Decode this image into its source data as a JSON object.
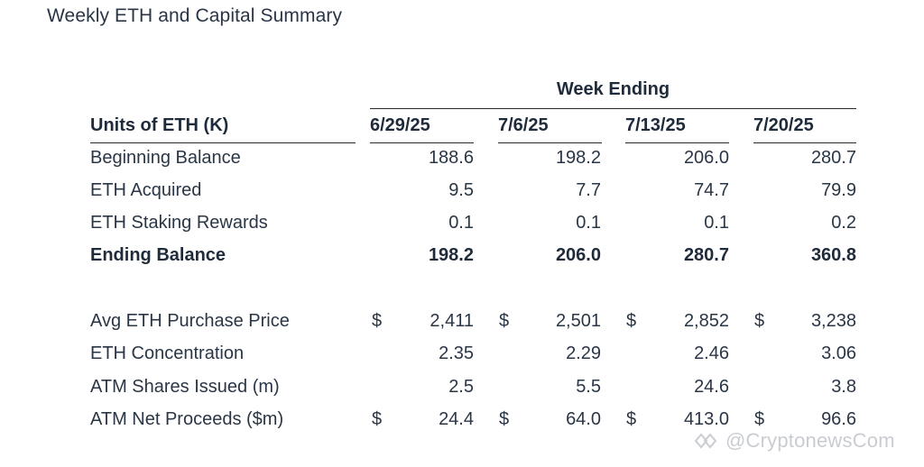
{
  "title": "Weekly ETH and Capital Summary",
  "header": {
    "group_label": "Week Ending",
    "units_label": "Units of ETH (K)",
    "dates": [
      "6/29/25",
      "7/6/25",
      "7/13/25",
      "7/20/25"
    ]
  },
  "rows": [
    {
      "label": "Beginning Balance",
      "bold": false,
      "currency": false,
      "values": [
        "188.6",
        "198.2",
        "206.0",
        "280.7"
      ]
    },
    {
      "label": "ETH Acquired",
      "bold": false,
      "currency": false,
      "values": [
        "9.5",
        "7.7",
        "74.7",
        "79.9"
      ]
    },
    {
      "label": "ETH Staking Rewards",
      "bold": false,
      "currency": false,
      "values": [
        "0.1",
        "0.1",
        "0.1",
        "0.2"
      ]
    },
    {
      "label": "Ending Balance",
      "bold": true,
      "currency": false,
      "values": [
        "198.2",
        "206.0",
        "280.7",
        "360.8"
      ]
    },
    {
      "label": "Avg ETH Purchase Price",
      "bold": false,
      "currency": true,
      "values": [
        "2,411",
        "2,501",
        "2,852",
        "3,238"
      ]
    },
    {
      "label": "ETH Concentration",
      "bold": false,
      "currency": false,
      "values": [
        "2.35",
        "2.29",
        "2.46",
        "3.06"
      ]
    },
    {
      "label": "ATM Shares Issued (m)",
      "bold": false,
      "currency": false,
      "values": [
        "2.5",
        "5.5",
        "24.6",
        "3.8"
      ]
    },
    {
      "label": "ATM Net Proceeds ($m)",
      "bold": false,
      "currency": true,
      "values": [
        "24.4",
        "64.0",
        "413.0",
        "96.6"
      ]
    }
  ],
  "currency_symbol": "$",
  "watermark": {
    "text": "@CryptonewsCom",
    "icon": "cryptonews-logo-icon"
  }
}
